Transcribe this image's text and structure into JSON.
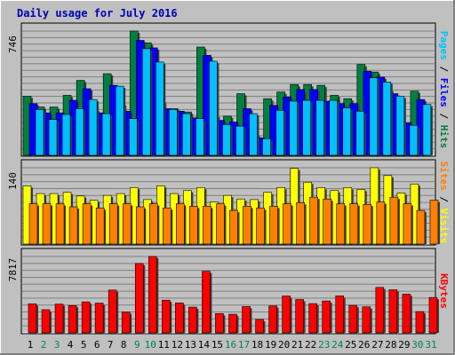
{
  "chart_data": [
    {
      "type": "bar",
      "title": "Daily usage for July 2016",
      "categories": [
        "1",
        "2",
        "3",
        "4",
        "5",
        "6",
        "7",
        "8",
        "9",
        "10",
        "11",
        "12",
        "13",
        "14",
        "15",
        "16",
        "17",
        "18",
        "19",
        "20",
        "21",
        "22",
        "23",
        "24",
        "25",
        "26",
        "27",
        "28",
        "29",
        "30",
        "31"
      ],
      "ymax_label": "746",
      "right_label": [
        "Pages",
        "/",
        "Files",
        "/",
        "Hits"
      ],
      "series": [
        {
          "name": "Hits",
          "values": [
            355,
            290,
            290,
            360,
            450,
            275,
            490,
            310,
            746,
            675,
            325,
            280,
            260,
            650,
            240,
            235,
            370,
            130,
            340,
            380,
            425,
            425,
            420,
            360,
            340,
            545,
            500,
            395,
            210,
            385,
            0
          ]
        },
        {
          "name": "Files",
          "values": [
            310,
            255,
            255,
            330,
            400,
            255,
            420,
            265,
            690,
            645,
            280,
            265,
            225,
            600,
            210,
            200,
            280,
            105,
            300,
            350,
            395,
            395,
            325,
            310,
            310,
            505,
            470,
            370,
            195,
            335,
            0
          ]
        },
        {
          "name": "Pages",
          "values": [
            275,
            215,
            245,
            280,
            335,
            250,
            415,
            220,
            640,
            560,
            275,
            250,
            220,
            565,
            185,
            175,
            250,
            100,
            270,
            325,
            330,
            330,
            330,
            285,
            265,
            465,
            440,
            355,
            180,
            305,
            0
          ]
        }
      ],
      "colors": {
        "Hits": "#008040",
        "Files": "#0000ff",
        "Pages": "#00c0ff"
      }
    },
    {
      "type": "bar",
      "ymax_label": "140",
      "right_label": [
        "Sites",
        "/",
        "Visits"
      ],
      "series": [
        {
          "name": "Visits",
          "values": [
            97,
            84,
            84,
            86,
            80,
            73,
            81,
            84,
            94,
            74,
            97,
            84,
            89,
            94,
            70,
            81,
            75,
            74,
            86,
            94,
            126,
            103,
            94,
            89,
            94,
            91,
            127,
            114,
            85,
            100,
            0
          ]
        },
        {
          "name": "Sites",
          "values": [
            67,
            67,
            67,
            62,
            67,
            60,
            67,
            67,
            62,
            67,
            60,
            67,
            63,
            63,
            67,
            56,
            63,
            60,
            63,
            67,
            69,
            78,
            75,
            67,
            67,
            66,
            70,
            78,
            67,
            56,
            73
          ]
        }
      ],
      "colors": {
        "Visits": "#ffff00",
        "Sites": "#ff8000"
      }
    },
    {
      "type": "bar",
      "ymax_label": "7817",
      "right_label": [
        "KBytes"
      ],
      "series": [
        {
          "name": "KBytes",
          "values": [
            2970,
            2370,
            2940,
            2800,
            3170,
            3040,
            4380,
            2130,
            7100,
            7817,
            3340,
            3060,
            2630,
            6300,
            1970,
            1900,
            2690,
            1370,
            2760,
            3770,
            3410,
            2990,
            3260,
            3780,
            2810,
            2660,
            4650,
            4410,
            3960,
            2180,
            3620
          ]
        }
      ],
      "colors": {
        "KBytes": "#ff0000"
      }
    }
  ],
  "day_label_colors": {
    "weekday": "#000000",
    "weekend": "#00805c"
  },
  "weekend_days": [
    "2",
    "3",
    "9",
    "10",
    "16",
    "17",
    "23",
    "24",
    "30",
    "31"
  ]
}
